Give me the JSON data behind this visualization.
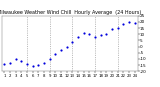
{
  "title": "Milwaukee Weather Wind Chill  Hourly Average  (24 Hours)",
  "title_fontsize": 3.5,
  "hours": [
    1,
    2,
    3,
    4,
    5,
    6,
    7,
    8,
    9,
    10,
    11,
    12,
    13,
    14,
    15,
    16,
    17,
    18,
    19,
    20,
    21,
    22,
    23,
    24
  ],
  "values": [
    -14,
    -13,
    -10,
    -12,
    -14,
    -16,
    -15,
    -13,
    -10,
    -6,
    -3,
    0,
    4,
    8,
    11,
    10,
    8,
    9,
    10,
    14,
    15,
    18,
    20,
    19
  ],
  "dot_color": "#0000dd",
  "dot_size": 2.5,
  "background_color": "#ffffff",
  "grid_color": "#888888",
  "ylim": [
    -20,
    25
  ],
  "ytick_values": [
    -20,
    -15,
    -10,
    -5,
    0,
    5,
    10,
    15,
    20,
    25
  ],
  "ytick_labels": [
    "-20",
    "-15",
    "-10",
    "-5",
    "0",
    "5",
    "10",
    "15",
    "20",
    "25"
  ],
  "ytick_fontsize": 3.0,
  "xtick_fontsize": 2.8,
  "vline_positions": [
    5,
    9,
    13,
    17,
    21
  ],
  "text_color": "#000000",
  "xlim": [
    0.5,
    24.5
  ],
  "xtick_labels_row1": [
    "1",
    "2",
    "3",
    "4",
    "5",
    "6",
    "7",
    "8",
    "9",
    "10",
    "11",
    "12",
    "13",
    "14",
    "15",
    "16",
    "17",
    "18",
    "19",
    "20",
    "21",
    "22",
    "23",
    "24"
  ]
}
